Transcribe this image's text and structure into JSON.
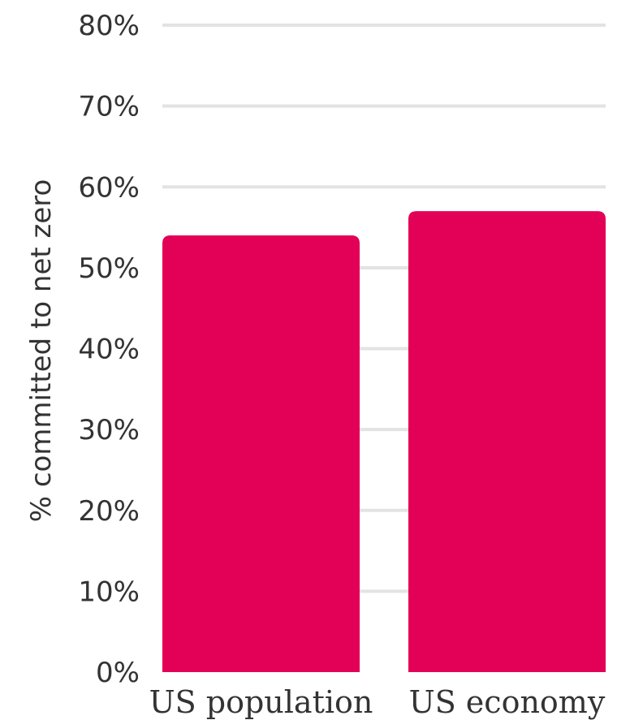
{
  "chart_data": {
    "type": "bar",
    "categories": [
      "US population",
      "US economy"
    ],
    "values": [
      54,
      57
    ],
    "ylabel": "% committed to net zero",
    "ylim": [
      0,
      80
    ],
    "yticks": [
      0,
      10,
      20,
      30,
      40,
      50,
      60,
      70,
      80
    ],
    "ytick_labels": [
      "0%",
      "10%",
      "20%",
      "30%",
      "40%",
      "50%",
      "60%",
      "70%",
      "80%"
    ],
    "grid": true,
    "colors": {
      "bar": "#e30057",
      "grid": "#e3e3e3",
      "text": "#333333"
    }
  }
}
